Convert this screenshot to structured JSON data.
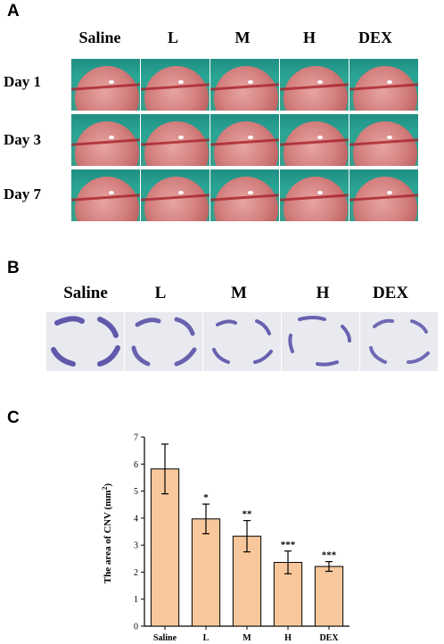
{
  "panels": {
    "a": {
      "letter": "A",
      "columns": [
        "Saline",
        "L",
        "M",
        "H",
        "DEX"
      ],
      "rows": [
        "Day 1",
        "Day 3",
        "Day 7"
      ]
    },
    "b": {
      "letter": "B",
      "columns": [
        "Saline",
        "L",
        "M",
        "H",
        "DEX"
      ]
    },
    "c": {
      "letter": "C"
    }
  },
  "chart_data": {
    "type": "bar",
    "categories": [
      "Saline",
      "L",
      "M",
      "H",
      "DEX"
    ],
    "values": [
      5.82,
      3.97,
      3.33,
      2.36,
      2.21
    ],
    "errors": [
      0.92,
      0.55,
      0.58,
      0.42,
      0.18
    ],
    "significance": [
      "",
      "*",
      "**",
      "***",
      "***"
    ],
    "ylabel": "The area of CNV (mm",
    "ylabel_sup": "2",
    "ylabel_end": ")",
    "yticks": [
      0,
      1,
      2,
      3,
      4,
      5,
      6,
      7
    ],
    "ylim": [
      0,
      7
    ],
    "bar_color": "#f8c89c",
    "bar_edge": "#000000",
    "grid": false
  },
  "colors": {
    "flatmount_stain": "#4b3fa0",
    "eye_background": "#2aa594"
  }
}
